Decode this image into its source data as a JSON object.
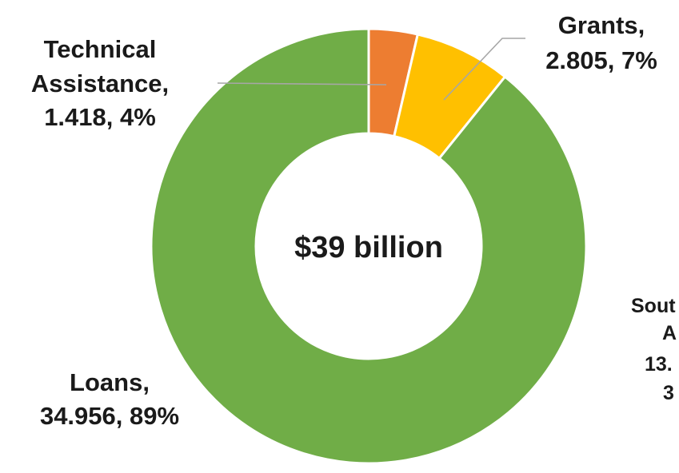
{
  "chart_data": {
    "type": "pie",
    "variant": "donut",
    "center_label": "$39 billion",
    "slices": [
      {
        "name": "Technical Assistance",
        "value": 1.418,
        "percent": "4%",
        "color": "#ed7d31"
      },
      {
        "name": "Grants",
        "value": 2.805,
        "percent": "7%",
        "color": "#ffc000"
      },
      {
        "name": "Loans",
        "value": 34.956,
        "percent": "89%",
        "color": "#70ad47"
      }
    ],
    "labels": {
      "technical_assistance": {
        "line1": "Technical",
        "line2": "Assistance,",
        "line3": "1.418, 4%"
      },
      "grants": {
        "line1": "Grants,",
        "line2": "2.805, 7%"
      },
      "loans": {
        "line1": "Loans,",
        "line2": "34.956, 89%"
      }
    },
    "cut_off_label": {
      "line1": "Sout",
      "line2": "A",
      "line3": "13.",
      "line4": "3"
    }
  }
}
